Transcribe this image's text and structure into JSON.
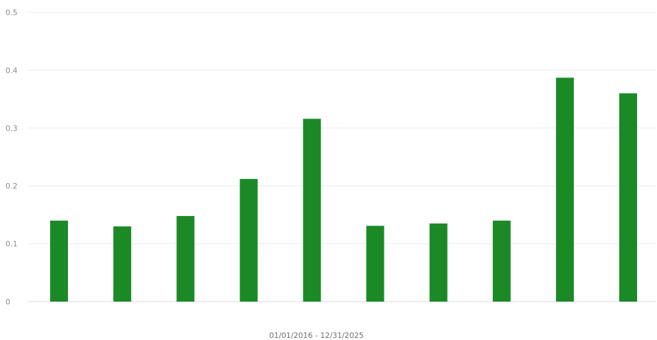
{
  "chart_data": {
    "type": "bar",
    "title": "",
    "xlabel": "01/01/2016 - 12/31/2025",
    "ylabel": "",
    "ylim": [
      0,
      0.5
    ],
    "yticks": [
      0,
      0.1,
      0.2,
      0.3,
      0.4,
      0.5
    ],
    "ytick_labels": [
      "0",
      "0.1",
      "0.2",
      "0.3",
      "0.4",
      "0.5"
    ],
    "grid": true,
    "legend": "none",
    "categories": [
      "",
      "",
      "",
      "",
      "",
      "",
      "",
      "",
      "",
      ""
    ],
    "values": [
      0.14,
      0.13,
      0.148,
      0.212,
      0.316,
      0.131,
      0.135,
      0.14,
      0.387,
      0.36
    ],
    "colors": {
      "bar": "#1b8a26",
      "grid": "#ececec",
      "tick_text": "#8a8a8a"
    }
  }
}
